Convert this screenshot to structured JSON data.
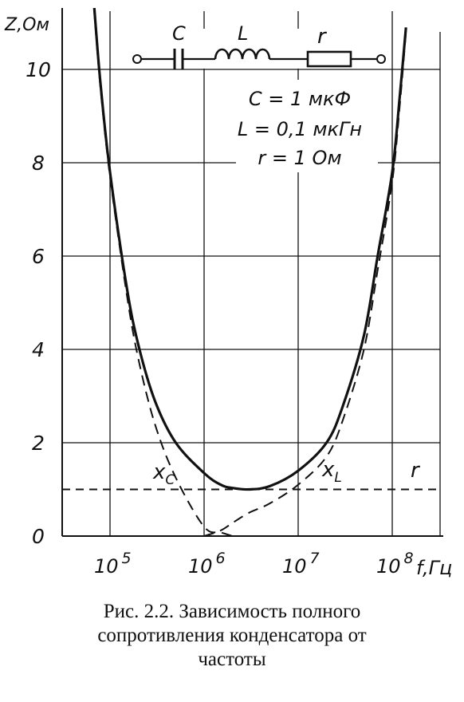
{
  "chart_data": {
    "type": "line",
    "x_scale": "log",
    "xlabel": "f,Гц",
    "ylabel": "Z,Ом",
    "xlim": [
      30000,
      200000000
    ],
    "ylim": [
      0,
      11
    ],
    "x_ticks": [
      {
        "value": 100000,
        "base": "10",
        "exp": "5"
      },
      {
        "value": 1000000,
        "base": "10",
        "exp": "6"
      },
      {
        "value": 10000000,
        "base": "10",
        "exp": "7"
      },
      {
        "value": 100000000,
        "base": "10",
        "exp": "8"
      }
    ],
    "y_ticks": [
      "0",
      "2",
      "4",
      "6",
      "8",
      "10"
    ],
    "grid": true,
    "series": [
      {
        "name": "Z",
        "style": "solid"
      },
      {
        "name": "x_C",
        "style": "dashed"
      },
      {
        "name": "x_L",
        "style": "dashed"
      },
      {
        "name": "r",
        "style": "dashed"
      }
    ],
    "points": {
      "f": [
        60000,
        70000,
        80000,
        100000,
        150000,
        200000,
        300000,
        500000,
        1000000,
        1500000,
        2000000,
        3000000,
        5000000,
        10000000,
        20000000,
        30000000,
        50000000,
        70000000,
        100000000,
        120000000,
        140000000
      ],
      "Z": [
        12.8,
        11.0,
        9.6,
        7.8,
        5.35,
        4.1,
        2.9,
        2.0,
        1.35,
        1.1,
        1.03,
        1.0,
        1.07,
        1.4,
        2.0,
        2.8,
        4.3,
        6.0,
        7.8,
        9.4,
        10.9
      ],
      "x_C": [
        12.7,
        10.9,
        9.5,
        7.7,
        5.2,
        3.8,
        2.4,
        1.25,
        0.2,
        0.08,
        0.0,
        null,
        null,
        null,
        null,
        null,
        null,
        null,
        null,
        null,
        null
      ],
      "x_L": [
        null,
        null,
        null,
        null,
        null,
        null,
        null,
        null,
        0.0,
        0.12,
        0.28,
        0.5,
        0.7,
        1.1,
        1.7,
        2.5,
        4.0,
        5.7,
        7.6,
        9.2,
        10.8
      ],
      "r": [
        1.0,
        1.0,
        1.0,
        1.0,
        1.0,
        1.0,
        1.0,
        1.0,
        1.0,
        1.0,
        1.0,
        1.0,
        1.0,
        1.0,
        1.0,
        1.0,
        1.0,
        1.0,
        1.0,
        1.0,
        1.0
      ]
    },
    "curve_labels": {
      "xc_main": "x",
      "xc_sub": "C",
      "xl_main": "x",
      "xl_sub": "L",
      "r": "r"
    },
    "circuit": {
      "c_label": "C",
      "l_label": "L",
      "r_label": "r"
    },
    "annotations": [
      "C = 1 мкФ",
      "L = 0,1 мкГн",
      "r = 1 Ом"
    ]
  },
  "caption": {
    "lines": [
      "Рис. 2.2. Зависимость   полного",
      "сопротивления конденсатора от",
      "частоты"
    ]
  }
}
